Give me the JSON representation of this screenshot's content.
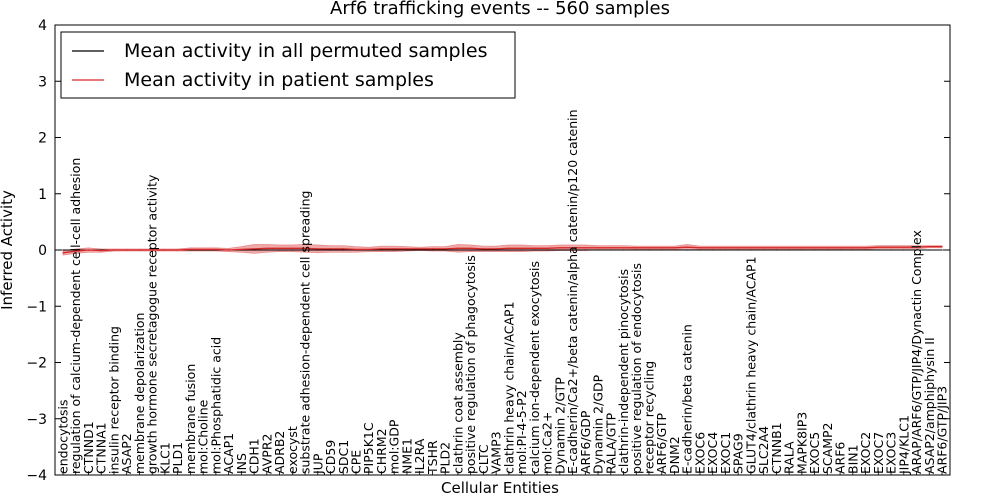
{
  "chart_data": {
    "type": "line",
    "title": "Arf6 trafficking events -- 560 samples",
    "xlabel": "Cellular Entities",
    "ylabel": "Inferred Activity",
    "ylim": [
      -4,
      4
    ],
    "yticks": [
      -4,
      -3,
      -2,
      -1,
      0,
      1,
      2,
      3,
      4
    ],
    "grid": false,
    "legend_position": "top-left",
    "categories": [
      "endocytosis",
      "regulation of calcium-dependent cell-cell adhesion",
      "CTNND1",
      "CTNNA1",
      "insulin receptor binding",
      "ASAP2",
      "membrane depolarization",
      "growth hormone secretagogue receptor activity",
      "KLC1",
      "PLD1",
      "membrane fusion",
      "mol:Choline",
      "mol:Phosphatidic acid",
      "ACAP1",
      "INS",
      "CDH1",
      "AVPR2",
      "ADRB2",
      "exocyst",
      "substrate adhesion-dependent cell spreading",
      "JUP",
      "CD59",
      "SDC1",
      "CPE",
      "PIP5K1C",
      "CHRM2",
      "mol:GDP",
      "NME1",
      "IL2RA",
      "TSHR",
      "PLD2",
      "clathrin coat assembly",
      "positive regulation of phagocytosis",
      "CLTC",
      "VAMP3",
      "clathrin heavy chain/ACAP1",
      "mol:PI-4-5-P2",
      "calcium ion-dependent exocytosis",
      "mol:Ca2+",
      "Dynamin 2/GTP",
      "E-cadherin/Ca2+/beta catenin/alpha catenin/p120 catenin",
      "ARF6/GDP",
      "Dynamin 2/GDP",
      "RALA/GTP",
      "clathrin-independent pinocytosis",
      "positive regulation of endocytosis",
      "receptor recycling",
      "ARF6/GTP",
      "DNM2",
      "E-cadherin/beta catenin",
      "EXOC6",
      "EXOC4",
      "EXOC1",
      "SPAG9",
      "GLUT4/clathrin heavy chain/ACAP1",
      "SLC2A4",
      "CTNNB1",
      "RALA",
      "MAPK8IP3",
      "EXOC5",
      "SCAMP2",
      "ARF6",
      "BIN1",
      "EXOC2",
      "EXOC7",
      "EXOC3",
      "JIP4/KLC1",
      "ARAP/ARF6/GTP/JIP4/Dynactin Complex",
      "ASAP2/amphiphysin II",
      "ARF6/GTP/JIP3"
    ],
    "series": [
      {
        "name": "Mean activity in all permuted samples",
        "color": "#000000",
        "values": [
          0.0,
          0.0,
          0.0,
          0.0,
          0.0,
          0.0,
          0.0,
          0.0,
          0.0,
          0.0,
          0.0,
          0.0,
          0.0,
          0.0,
          0.0,
          0.0,
          0.0,
          0.0,
          0.0,
          0.0,
          0.0,
          0.0,
          0.0,
          0.0,
          0.0,
          0.0,
          0.0,
          0.0,
          0.0,
          0.0,
          0.0,
          0.0,
          0.0,
          0.0,
          0.0,
          0.0,
          0.0,
          0.0,
          0.0,
          0.0,
          0.0,
          0.0,
          0.0,
          0.0,
          0.0,
          0.0,
          0.0,
          0.0,
          0.0,
          0.0,
          0.0,
          0.0,
          0.0,
          0.0,
          0.0,
          0.0,
          0.0,
          0.0,
          0.0,
          0.0,
          0.0,
          0.0,
          0.0,
          0.0,
          0.0,
          0.0,
          0.0,
          0.0,
          0.0,
          0.0
        ]
      },
      {
        "name": "Mean activity in patient samples",
        "color": "#d62728",
        "values": [
          -0.05,
          -0.02,
          0.0,
          -0.01,
          0.0,
          0.0,
          0.0,
          0.0,
          0.0,
          0.0,
          0.01,
          0.01,
          0.01,
          0.0,
          0.01,
          0.02,
          0.03,
          0.03,
          0.03,
          0.03,
          0.02,
          0.02,
          0.02,
          0.01,
          0.01,
          0.02,
          0.02,
          0.02,
          0.02,
          0.02,
          0.02,
          0.03,
          0.03,
          0.02,
          0.02,
          0.03,
          0.03,
          0.03,
          0.03,
          0.04,
          0.04,
          0.04,
          0.04,
          0.04,
          0.04,
          0.04,
          0.04,
          0.04,
          0.04,
          0.05,
          0.04,
          0.04,
          0.04,
          0.04,
          0.04,
          0.04,
          0.04,
          0.04,
          0.04,
          0.04,
          0.04,
          0.04,
          0.04,
          0.04,
          0.05,
          0.05,
          0.05,
          0.05,
          0.06,
          0.06
        ],
        "band_halfwidth": [
          0.04,
          0.04,
          0.04,
          0.03,
          0.02,
          0.02,
          0.02,
          0.02,
          0.02,
          0.02,
          0.03,
          0.03,
          0.03,
          0.03,
          0.05,
          0.08,
          0.07,
          0.06,
          0.06,
          0.07,
          0.07,
          0.06,
          0.06,
          0.05,
          0.04,
          0.05,
          0.05,
          0.04,
          0.03,
          0.04,
          0.04,
          0.07,
          0.06,
          0.05,
          0.05,
          0.06,
          0.06,
          0.05,
          0.05,
          0.05,
          0.05,
          0.05,
          0.04,
          0.04,
          0.04,
          0.03,
          0.03,
          0.03,
          0.03,
          0.05,
          0.03,
          0.03,
          0.03,
          0.03,
          0.03,
          0.03,
          0.03,
          0.03,
          0.03,
          0.03,
          0.03,
          0.03,
          0.03,
          0.03,
          0.03,
          0.03,
          0.03,
          0.03,
          0.02,
          0.02
        ]
      }
    ]
  }
}
